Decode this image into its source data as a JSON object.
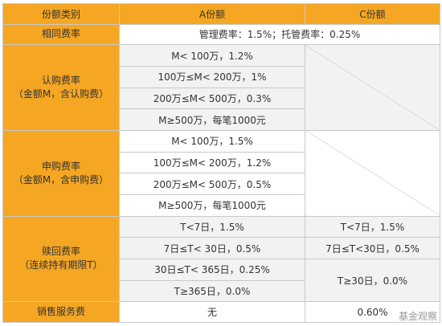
{
  "header": {
    "category": "份额类别",
    "class_a": "A份额",
    "class_c": "C份额"
  },
  "common_fee": {
    "label": "相同费率",
    "value": "管理费率：1.5%；托管费率：0.25%"
  },
  "subscription": {
    "label_line1": "认购费率",
    "label_line2": "（金额M，含认购费）",
    "rows": [
      "M< 100万，1.2%",
      "100万≤M< 200万，1%",
      "200万≤M< 500万，0.3%",
      "M≥500万，每笔1000元"
    ]
  },
  "purchase": {
    "label_line1": "申购费率",
    "label_line2": "（金额M，含申购费）",
    "rows": [
      "M< 100万，1.5%",
      "100万≤M< 200万，1.2%",
      "200万≤M< 500万，0.5%",
      "M≥500万，每笔1000元"
    ]
  },
  "redemption": {
    "label_line1": "赎回费率",
    "label_line2": "（连续持有期限T）",
    "a_rows": [
      "T<7日，1.5%",
      "7日≤T< 30日，0.5%",
      "30日≤T< 365日，0.25%",
      "T≥365日，0.0%"
    ],
    "c_rows": [
      "T<7日，1.5%",
      "7日≤T<30日，0.5%",
      "T≥30日，0.0%"
    ]
  },
  "sales_service": {
    "label": "销售服务费",
    "a_value": "无",
    "c_value": "0.60%"
  },
  "watermark": "基金观察",
  "colors": {
    "header_bg": "#f5a623",
    "grid": "#c9c9c9",
    "alt_row": "#f2f2f2"
  }
}
